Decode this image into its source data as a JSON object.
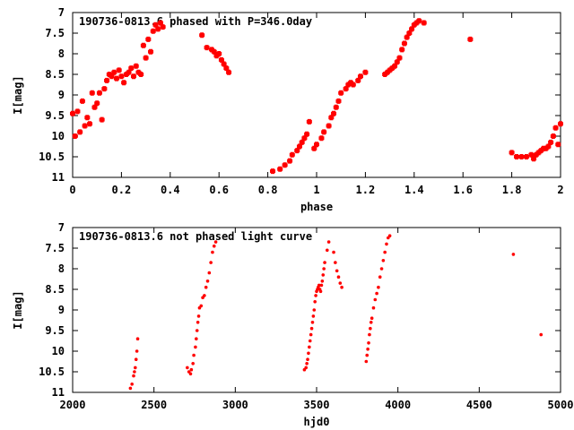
{
  "chart_data": [
    {
      "type": "scatter",
      "title": "190736-0813.6 phased with P=346.0day",
      "xlabel": "phase",
      "ylabel": "I[mag]",
      "xlim": [
        0,
        2
      ],
      "ylim": [
        7,
        11
      ],
      "y_inverted": true,
      "x_ticks": [
        0,
        0.2,
        0.4,
        0.6,
        0.8,
        1,
        1.2,
        1.4,
        1.6,
        1.8,
        2
      ],
      "x_tick_labels": [
        "0",
        "0.2",
        "0.4",
        "0.6",
        "0.8",
        "1",
        "1.2",
        "1.4",
        "1.6",
        "1.8",
        "2"
      ],
      "y_ticks": [
        7,
        7.5,
        8,
        8.5,
        9,
        9.5,
        10,
        10.5,
        11
      ],
      "y_tick_labels": [
        "7",
        "7.5",
        "8",
        "8.5",
        "9",
        "9.5",
        "10",
        "10.5",
        "11"
      ],
      "marker_color": "#ff0000",
      "grid": false,
      "series": [
        {
          "x": [
            0.0,
            0.01,
            0.02,
            0.03,
            0.04,
            0.05,
            0.06,
            0.07,
            0.08,
            0.09,
            0.1,
            0.11,
            0.12,
            0.13,
            0.14,
            0.15,
            0.16,
            0.17,
            0.18,
            0.19,
            0.2,
            0.21,
            0.22,
            0.23,
            0.24,
            0.25,
            0.26,
            0.27,
            0.28,
            0.29,
            0.3,
            0.31,
            0.32,
            0.33,
            0.34,
            0.35,
            0.36,
            0.37,
            0.53,
            0.55,
            0.57,
            0.58,
            0.59,
            0.6,
            0.61,
            0.62,
            0.63,
            0.64,
            0.82,
            0.85,
            0.87,
            0.89,
            0.9,
            0.92,
            0.93,
            0.94,
            0.95,
            0.96,
            0.97,
            0.99,
            1.0,
            1.02,
            1.03,
            1.05,
            1.06,
            1.07,
            1.08,
            1.09,
            1.1,
            1.12,
            1.13,
            1.14,
            1.15,
            1.17,
            1.18,
            1.2,
            1.28,
            1.29,
            1.3,
            1.31,
            1.32,
            1.33,
            1.34,
            1.35,
            1.36,
            1.37,
            1.38,
            1.39,
            1.4,
            1.41,
            1.42,
            1.44,
            1.63,
            1.8,
            1.82,
            1.84,
            1.86,
            1.88,
            1.89,
            1.9,
            1.91,
            1.92,
            1.93,
            1.94,
            1.95,
            1.96,
            1.97,
            1.98,
            1.99,
            2.0
          ],
          "y": [
            9.45,
            10.0,
            9.4,
            9.9,
            9.15,
            9.75,
            9.55,
            9.7,
            8.95,
            9.3,
            9.2,
            8.95,
            9.6,
            8.85,
            8.65,
            8.5,
            8.55,
            8.45,
            8.6,
            8.4,
            8.55,
            8.7,
            8.5,
            8.45,
            8.35,
            8.55,
            8.3,
            8.45,
            8.5,
            7.8,
            8.1,
            7.65,
            7.95,
            7.45,
            7.3,
            7.4,
            7.25,
            7.35,
            7.55,
            7.85,
            7.9,
            7.95,
            8.05,
            8.0,
            8.15,
            8.25,
            8.35,
            8.45,
            10.85,
            10.8,
            10.7,
            10.6,
            10.45,
            10.35,
            10.25,
            10.15,
            10.05,
            9.95,
            9.65,
            10.3,
            10.2,
            10.05,
            9.9,
            9.75,
            9.55,
            9.45,
            9.3,
            9.15,
            8.95,
            8.85,
            8.75,
            8.7,
            8.75,
            8.65,
            8.55,
            8.45,
            8.5,
            8.45,
            8.4,
            8.35,
            8.3,
            8.2,
            8.1,
            7.9,
            7.75,
            7.6,
            7.5,
            7.4,
            7.3,
            7.25,
            7.2,
            7.25,
            7.65,
            10.4,
            10.5,
            10.5,
            10.5,
            10.45,
            10.55,
            10.45,
            10.4,
            10.35,
            10.3,
            10.3,
            10.25,
            10.15,
            10.0,
            9.8,
            10.2,
            9.7
          ]
        }
      ]
    },
    {
      "type": "scatter",
      "title": "190736-0813.6 not phased light curve",
      "xlabel": "hjd0",
      "ylabel": "I[mag]",
      "xlim": [
        2000,
        5000
      ],
      "ylim": [
        7,
        11
      ],
      "y_inverted": true,
      "x_ticks": [
        2000,
        2500,
        3000,
        3500,
        4000,
        4500,
        5000
      ],
      "x_tick_labels": [
        "2000",
        "2500",
        "3000",
        "3500",
        "4000",
        "4500",
        "5000"
      ],
      "y_ticks": [
        7,
        7.5,
        8,
        8.5,
        9,
        9.5,
        10,
        10.5,
        11
      ],
      "y_tick_labels": [
        "7",
        "7.5",
        "8",
        "8.5",
        "9",
        "9.5",
        "10",
        "10.5",
        "11"
      ],
      "marker_color": "#ff0000",
      "grid": false,
      "series": [
        {
          "x": [
            2355,
            2365,
            2375,
            2380,
            2385,
            2390,
            2395,
            2400,
            2705,
            2715,
            2725,
            2730,
            2740,
            2745,
            2755,
            2760,
            2765,
            2770,
            2775,
            2780,
            2790,
            2800,
            2810,
            2820,
            2830,
            2840,
            2850,
            2860,
            2870,
            2880,
            3425,
            3435,
            3440,
            3445,
            3450,
            3455,
            3460,
            3465,
            3470,
            3475,
            3480,
            3485,
            3490,
            3495,
            3500,
            3505,
            3510,
            3515,
            3520,
            3525,
            3530,
            3535,
            3540,
            3545,
            3550,
            3565,
            3575,
            3605,
            3615,
            3625,
            3635,
            3645,
            3655,
            3805,
            3810,
            3815,
            3820,
            3825,
            3830,
            3835,
            3840,
            3850,
            3860,
            3870,
            3880,
            3890,
            3900,
            3910,
            3920,
            3930,
            3940,
            3950,
            4710,
            4880
          ],
          "y": [
            10.9,
            10.8,
            10.6,
            10.5,
            10.4,
            10.2,
            10.0,
            9.7,
            10.4,
            10.5,
            10.55,
            10.45,
            10.3,
            10.1,
            9.9,
            9.7,
            9.5,
            9.3,
            9.15,
            8.95,
            8.9,
            8.7,
            8.65,
            8.45,
            8.3,
            8.1,
            7.85,
            7.6,
            7.45,
            7.35,
            10.45,
            10.4,
            10.3,
            10.2,
            10.05,
            9.9,
            9.75,
            9.6,
            9.45,
            9.3,
            9.15,
            9.0,
            8.8,
            8.65,
            8.55,
            8.5,
            8.45,
            8.4,
            8.5,
            8.55,
            8.4,
            8.3,
            8.15,
            8.0,
            7.85,
            7.55,
            7.35,
            7.6,
            7.85,
            8.05,
            8.2,
            8.35,
            8.45,
            10.25,
            10.1,
            9.95,
            9.8,
            9.6,
            9.45,
            9.3,
            9.2,
            8.95,
            8.75,
            8.6,
            8.45,
            8.2,
            8.0,
            7.8,
            7.6,
            7.4,
            7.25,
            7.2,
            7.65,
            9.6
          ]
        }
      ]
    }
  ]
}
